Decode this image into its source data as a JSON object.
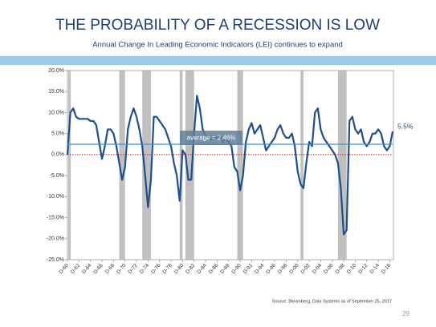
{
  "chart_data": {
    "type": "line",
    "title": "THE PROBABILITY OF A RECESSION IS LOW",
    "subtitle": "Annual Change In Leading Economic Indicators (LEI) continues to expand",
    "source": "Source:  Bloomberg, Data Systems as of September 25, 2017",
    "page_number": "29",
    "categories": [
      "D-60",
      null,
      null,
      null,
      "D-62",
      null,
      null,
      null,
      "D-64",
      null,
      null,
      null,
      "D-66",
      null,
      null,
      null,
      "D-68",
      null,
      null,
      null,
      "D-70",
      null,
      null,
      null,
      "D-72",
      null,
      null,
      null,
      "D-74",
      null,
      null,
      null,
      "D-76",
      null,
      null,
      null,
      "D-78",
      null,
      null,
      null,
      "D-80",
      null,
      null,
      null,
      "D-82",
      null,
      null,
      null,
      "D-84",
      null,
      null,
      null,
      "D-86",
      null,
      null,
      null,
      "D-88",
      null,
      null,
      null,
      "D-90",
      null,
      null,
      null,
      "D-92",
      null,
      null,
      null,
      "D-94",
      null,
      null,
      null,
      "D-96",
      null,
      null,
      null,
      "D-98",
      null,
      null,
      null,
      "D-00",
      null,
      null,
      null,
      "D-02",
      null,
      null,
      null,
      "D-04",
      null,
      null,
      null,
      "D-06",
      null,
      null,
      null,
      "D-08",
      null,
      null,
      null,
      "D-10",
      null,
      null,
      null,
      "D-12",
      null,
      null,
      null,
      "D-14",
      null,
      null,
      null,
      "D-16",
      null
    ],
    "values": [
      0,
      10,
      11,
      9,
      8.5,
      8.5,
      8.5,
      8.5,
      8,
      8,
      7,
      3,
      -1,
      2,
      6,
      6,
      5,
      2,
      -2,
      -6,
      -3,
      6,
      9,
      11,
      9,
      6,
      2,
      -5,
      -12.5,
      -6,
      9,
      9,
      8,
      7,
      6,
      4,
      2,
      -2,
      -5,
      -11,
      1,
      0,
      -6,
      -6,
      5,
      14,
      11,
      6,
      4.5,
      4,
      3.5,
      4,
      4,
      4.5,
      3,
      4,
      3,
      2,
      -3,
      -4,
      -8.5,
      -5,
      3,
      6,
      7.5,
      5,
      6,
      7,
      4,
      1,
      2,
      3,
      4,
      6,
      7,
      5,
      4,
      4,
      5,
      2,
      -4,
      -7,
      -8,
      -2,
      3,
      2,
      10,
      11,
      6,
      4,
      3,
      2,
      1,
      0,
      -2,
      -8,
      -19,
      -18,
      8,
      9,
      6,
      5,
      6,
      3,
      2,
      3,
      5,
      5,
      6,
      5,
      2,
      1,
      2,
      5.5
    ],
    "value_labels": [
      null,
      null,
      null,
      null,
      null,
      null,
      null,
      null,
      null,
      null,
      null,
      null,
      null,
      null,
      null,
      null,
      null,
      null,
      null,
      null,
      null,
      null,
      null,
      null,
      null,
      null,
      null,
      null,
      null,
      null,
      null,
      null,
      null,
      null,
      null,
      null,
      null,
      null,
      null,
      null,
      null,
      null,
      null,
      null,
      null,
      null,
      null,
      null,
      null,
      null,
      null,
      null,
      null,
      null,
      null,
      null,
      null,
      null,
      null,
      null,
      null,
      null,
      null,
      null,
      null,
      null,
      null,
      null,
      null,
      null,
      null,
      null,
      null,
      null,
      null,
      null,
      null,
      null,
      null,
      null,
      null,
      null,
      null,
      null,
      null,
      null,
      null,
      null,
      null,
      null,
      null,
      null,
      null,
      null,
      null,
      null,
      null,
      null,
      null,
      null,
      null,
      null,
      null,
      null,
      null,
      null,
      null,
      null,
      null,
      null,
      null,
      null,
      null,
      "5.5%"
    ],
    "color": "#1f4e8c",
    "shaded_bands": [
      [
        0.3,
        1
      ],
      [
        18,
        20
      ],
      [
        26,
        29
      ],
      [
        39,
        40
      ],
      [
        41,
        44
      ],
      [
        59,
        61
      ],
      [
        81,
        82
      ],
      [
        94,
        97
      ]
    ],
    "band_color": "#c0c0c0",
    "average": 2.46,
    "average_label": "average = 2.46%",
    "average_color": "#3b8fd6",
    "zero_line_color": "#d02020",
    "ylim": [
      -25,
      20
    ],
    "yticks": [
      {
        "value": -25,
        "label": "-25.0%"
      },
      {
        "value": -20,
        "label": "-20.0%"
      },
      {
        "value": -15,
        "label": "-15.0%"
      },
      {
        "value": -10,
        "label": "-10.0%"
      },
      {
        "value": -5,
        "label": "-5.0%"
      },
      {
        "value": 0,
        "label": "0.0%"
      },
      {
        "value": 5,
        "label": "5.0%"
      },
      {
        "value": 10,
        "label": "10.0%"
      },
      {
        "value": 15,
        "label": "15.0%"
      },
      {
        "value": 20,
        "label": "20.0%"
      }
    ]
  }
}
